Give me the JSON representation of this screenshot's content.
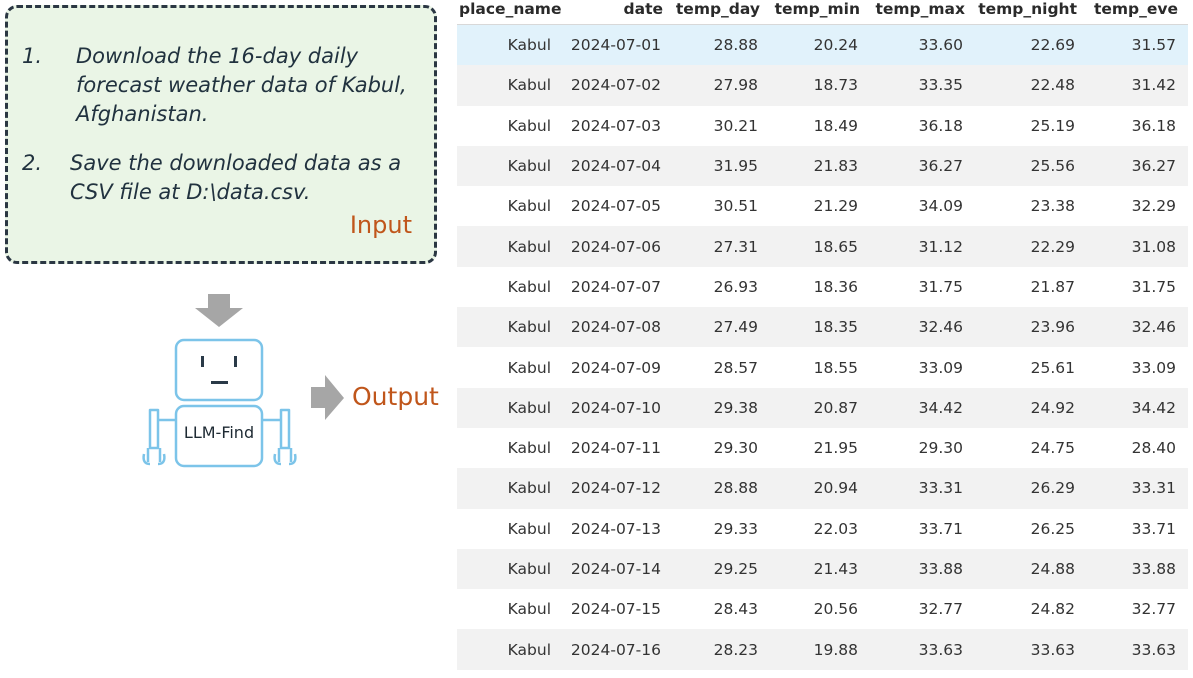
{
  "instructions": {
    "tasks": [
      {
        "num": "1.",
        "text": "Download the 16-day daily forecast weather data of Kabul, Afghanistan."
      },
      {
        "num": "2.",
        "text": "Save the downloaded data as a CSV file at D:\\data.csv."
      }
    ],
    "input_label": "Input"
  },
  "agent": {
    "name": "LLM-Find",
    "output_label": "Output"
  },
  "colors": {
    "accent_orange": "#c0561b",
    "input_box_bg": "#eaf5e6",
    "robot_blue": "#7cc4e9",
    "arrow_gray": "#a6a6a6",
    "selected_row": "#e1f2fb"
  },
  "table": {
    "columns": [
      "place_name",
      "date",
      "temp_day",
      "temp_min",
      "temp_max",
      "temp_night",
      "temp_eve"
    ],
    "rows": [
      [
        "Kabul",
        "2024-07-01",
        "28.88",
        "20.24",
        "33.60",
        "22.69",
        "31.57"
      ],
      [
        "Kabul",
        "2024-07-02",
        "27.98",
        "18.73",
        "33.35",
        "22.48",
        "31.42"
      ],
      [
        "Kabul",
        "2024-07-03",
        "30.21",
        "18.49",
        "36.18",
        "25.19",
        "36.18"
      ],
      [
        "Kabul",
        "2024-07-04",
        "31.95",
        "21.83",
        "36.27",
        "25.56",
        "36.27"
      ],
      [
        "Kabul",
        "2024-07-05",
        "30.51",
        "21.29",
        "34.09",
        "23.38",
        "32.29"
      ],
      [
        "Kabul",
        "2024-07-06",
        "27.31",
        "18.65",
        "31.12",
        "22.29",
        "31.08"
      ],
      [
        "Kabul",
        "2024-07-07",
        "26.93",
        "18.36",
        "31.75",
        "21.87",
        "31.75"
      ],
      [
        "Kabul",
        "2024-07-08",
        "27.49",
        "18.35",
        "32.46",
        "23.96",
        "32.46"
      ],
      [
        "Kabul",
        "2024-07-09",
        "28.57",
        "18.55",
        "33.09",
        "25.61",
        "33.09"
      ],
      [
        "Kabul",
        "2024-07-10",
        "29.38",
        "20.87",
        "34.42",
        "24.92",
        "34.42"
      ],
      [
        "Kabul",
        "2024-07-11",
        "29.30",
        "21.95",
        "29.30",
        "24.75",
        "28.40"
      ],
      [
        "Kabul",
        "2024-07-12",
        "28.88",
        "20.94",
        "33.31",
        "26.29",
        "33.31"
      ],
      [
        "Kabul",
        "2024-07-13",
        "29.33",
        "22.03",
        "33.71",
        "26.25",
        "33.71"
      ],
      [
        "Kabul",
        "2024-07-14",
        "29.25",
        "21.43",
        "33.88",
        "24.88",
        "33.88"
      ],
      [
        "Kabul",
        "2024-07-15",
        "28.43",
        "20.56",
        "32.77",
        "24.82",
        "32.77"
      ],
      [
        "Kabul",
        "2024-07-16",
        "28.23",
        "19.88",
        "33.63",
        "33.63",
        "33.63"
      ]
    ]
  }
}
